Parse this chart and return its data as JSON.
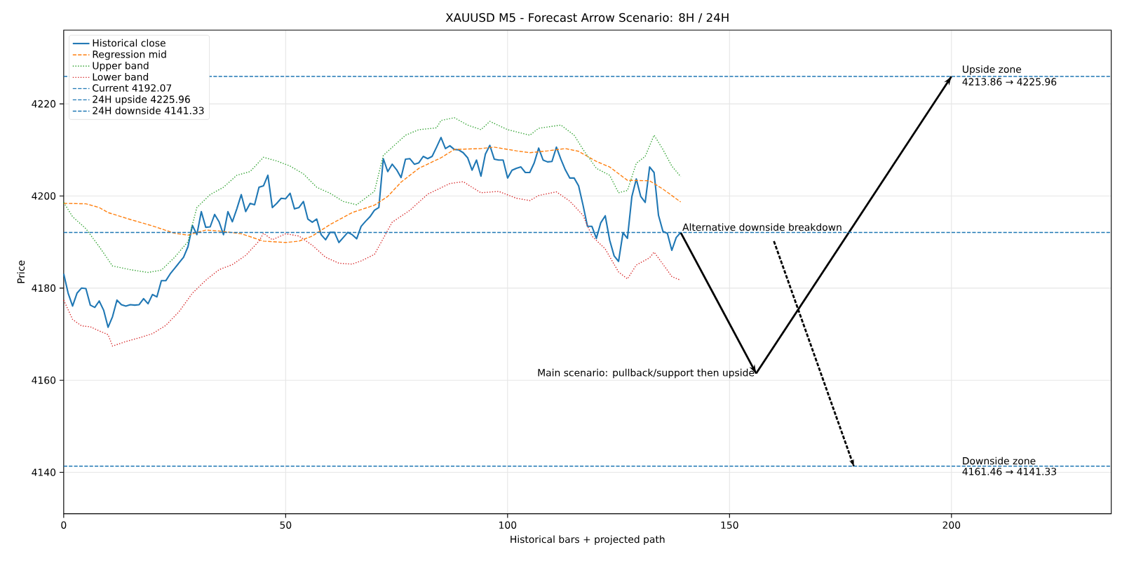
{
  "chart_data": {
    "type": "line",
    "title": "XAUUSD M5 - Forecast Arrow Scenario: 8H / 24H",
    "xlabel": "Historical bars + projected path",
    "ylabel": "Price",
    "xlim": [
      0,
      236
    ],
    "ylim": [
      4131,
      4236
    ],
    "xticks": [
      0,
      50,
      100,
      150,
      200
    ],
    "yticks": [
      4140,
      4160,
      4180,
      4200,
      4220
    ],
    "grid": true,
    "legend": "top left",
    "series": [
      {
        "name": "Historical close",
        "color": "#1f77b4",
        "line_style": "solid",
        "x": [
          0,
          1,
          2,
          3,
          4,
          5,
          6,
          7,
          8,
          9,
          10,
          11,
          12,
          13,
          14,
          15,
          16,
          17,
          18,
          19,
          20,
          21,
          22,
          23,
          24,
          25,
          26,
          27,
          28,
          29,
          30,
          31,
          32,
          33,
          34,
          35,
          36,
          37,
          38,
          39,
          40,
          41,
          42,
          43,
          44,
          45,
          46,
          47,
          48,
          49,
          50,
          51,
          52,
          53,
          54,
          55,
          56,
          57,
          58,
          59,
          60,
          61,
          62,
          63,
          64,
          65,
          66,
          67,
          68,
          69,
          70,
          71,
          72,
          73,
          74,
          75,
          76,
          77,
          78,
          79,
          80,
          81,
          82,
          83,
          84,
          85,
          86,
          87,
          88,
          89,
          90,
          91,
          92,
          93,
          94,
          95,
          96,
          97,
          98,
          99,
          100,
          101,
          102,
          103,
          104,
          105,
          106,
          107,
          108,
          109,
          110,
          111,
          112,
          113,
          114,
          115,
          116,
          117,
          118,
          119,
          120,
          121,
          122,
          123,
          124,
          125,
          126,
          127,
          128,
          129,
          130,
          131,
          132,
          133,
          134,
          135,
          136,
          137,
          138,
          139
        ],
        "values": [
          4183.1,
          4178.9,
          4176.1,
          4178.9,
          4180.0,
          4179.9,
          4176.3,
          4175.8,
          4177.2,
          4175.2,
          4171.5,
          4173.8,
          4177.4,
          4176.4,
          4176.1,
          4176.4,
          4176.3,
          4176.4,
          4177.7,
          4176.6,
          4178.6,
          4178.1,
          4181.6,
          4181.6,
          4183.1,
          4184.3,
          4185.5,
          4186.7,
          4189.0,
          4193.6,
          4191.6,
          4196.6,
          4193.2,
          4193.3,
          4196.0,
          4194.4,
          4191.6,
          4196.6,
          4194.4,
          4197.2,
          4200.3,
          4196.6,
          4198.4,
          4198.1,
          4201.9,
          4202.2,
          4204.5,
          4197.5,
          4198.4,
          4199.5,
          4199.4,
          4200.6,
          4197.2,
          4197.5,
          4198.8,
          4195.0,
          4194.3,
          4195.0,
          4191.6,
          4190.5,
          4192.1,
          4192.1,
          4189.9,
          4191.0,
          4192.1,
          4191.6,
          4190.7,
          4193.4,
          4194.5,
          4195.5,
          4196.9,
          4197.5,
          4208.1,
          4205.3,
          4206.9,
          4205.7,
          4204.0,
          4208.0,
          4208.1,
          4206.9,
          4207.2,
          4208.6,
          4208.1,
          4208.6,
          4210.6,
          4212.7,
          4210.3,
          4210.9,
          4210.1,
          4210.0,
          4209.4,
          4208.3,
          4205.6,
          4207.8,
          4204.3,
          4209.1,
          4211.0,
          4208.0,
          4207.8,
          4207.8,
          4203.9,
          4205.6,
          4206.0,
          4206.3,
          4205.1,
          4205.1,
          4207.2,
          4210.4,
          4207.8,
          4207.4,
          4207.5,
          4210.6,
          4208.0,
          4205.7,
          4203.9,
          4203.9,
          4202.2,
          4198.0,
          4193.4,
          4193.4,
          4190.8,
          4194.2,
          4195.7,
          4190.4,
          4187.0,
          4185.8,
          4192.0,
          4190.8,
          4199.9,
          4203.7,
          4199.9,
          4198.6,
          4206.3,
          4205.1,
          4195.8,
          4192.3,
          4191.9,
          4188.2,
          4191.0,
          4192.07
        ]
      },
      {
        "name": "Regression mid",
        "color": "#ff7f0e",
        "line_style": "dashed",
        "x": [
          0,
          5,
          8,
          10,
          15,
          20,
          25,
          28,
          32,
          35,
          40,
          45,
          50,
          53,
          56,
          60,
          65,
          70,
          73,
          76,
          80,
          85,
          88,
          94,
          97,
          102,
          105,
          109,
          113,
          116,
          120,
          123,
          127,
          132,
          135,
          139
        ],
        "values": [
          4198.4,
          4198.3,
          4197.5,
          4196.4,
          4194.9,
          4193.5,
          4191.9,
          4191.5,
          4192.6,
          4192.4,
          4191.8,
          4190.2,
          4189.9,
          4190.2,
          4191.3,
          4193.8,
          4196.4,
          4198.0,
          4199.9,
          4203.0,
          4206.0,
          4208.3,
          4210.1,
          4210.3,
          4210.6,
          4209.8,
          4209.4,
          4209.8,
          4210.3,
          4209.7,
          4207.5,
          4206.3,
          4203.4,
          4203.3,
          4201.5,
          4198.7
        ]
      },
      {
        "name": "Upper band",
        "color": "#2ca02c",
        "line_style": "dotted",
        "x": [
          0,
          2,
          5,
          8,
          11,
          15,
          19,
          22,
          25,
          28,
          30,
          33,
          36,
          39,
          42,
          45,
          48,
          51,
          54,
          57,
          60,
          63,
          66,
          70,
          72,
          77,
          80,
          84,
          85,
          88,
          91,
          94,
          96,
          100,
          105,
          107,
          112,
          115,
          117,
          120,
          123,
          125,
          127,
          129,
          131,
          133,
          135,
          137,
          139
        ],
        "values": [
          4198.6,
          4195.5,
          4192.9,
          4189.0,
          4184.8,
          4184.0,
          4183.4,
          4183.9,
          4186.7,
          4190.1,
          4197.5,
          4200.3,
          4201.9,
          4204.5,
          4205.3,
          4208.4,
          4207.6,
          4206.5,
          4204.8,
          4201.9,
          4200.6,
          4198.8,
          4198.1,
          4201.0,
          4208.8,
          4213.2,
          4214.4,
          4214.8,
          4216.4,
          4217.0,
          4215.4,
          4214.4,
          4216.2,
          4214.4,
          4213.2,
          4214.7,
          4215.4,
          4213.2,
          4210.1,
          4206.0,
          4204.5,
          4200.7,
          4201.2,
          4207.1,
          4208.6,
          4213.2,
          4210.1,
          4206.5,
          4204.2
        ]
      },
      {
        "name": "Lower band",
        "color": "#d62728",
        "line_style": "dotted",
        "x": [
          0,
          2,
          4,
          6,
          8,
          10,
          11,
          14,
          17,
          20,
          23,
          26,
          29,
          32,
          35,
          38,
          41,
          44,
          45,
          47,
          50,
          53,
          56,
          59,
          62,
          65,
          67,
          70,
          74,
          78,
          82,
          87,
          90,
          94,
          98,
          102,
          105,
          107,
          111,
          114,
          117,
          119,
          122,
          125,
          127,
          129,
          132,
          133,
          135,
          137,
          139
        ],
        "values": [
          4177.4,
          4173.2,
          4171.8,
          4171.6,
          4170.7,
          4169.9,
          4167.4,
          4168.4,
          4169.2,
          4170.1,
          4171.9,
          4174.9,
          4178.9,
          4181.7,
          4184.0,
          4185.1,
          4187.1,
          4190.2,
          4191.9,
          4190.5,
          4191.8,
          4191.3,
          4189.3,
          4186.7,
          4185.4,
          4185.2,
          4185.9,
          4187.3,
          4194.3,
          4196.9,
          4200.4,
          4202.7,
          4203.1,
          4200.7,
          4201.0,
          4199.5,
          4199.0,
          4200.1,
          4200.9,
          4198.9,
          4195.8,
          4191.3,
          4188.5,
          4183.5,
          4182.0,
          4185.0,
          4186.6,
          4187.8,
          4185.2,
          4182.5,
          4181.7
        ]
      },
      {
        "color": "#000000",
        "line_style": "solid",
        "x": [
          139,
          156
        ],
        "values": [
          4192.07,
          4161.46
        ]
      },
      {
        "color": "#000000",
        "line_style": "solid",
        "x": [
          156,
          200
        ],
        "values": [
          4161.46,
          4225.96
        ]
      },
      {
        "color": "#000000",
        "line_style": "dashed",
        "x": [
          160,
          178
        ],
        "values": [
          4190.2,
          4141.33
        ]
      }
    ],
    "ref_lines": [
      {
        "axis": "y",
        "value": 4192.07,
        "label": "Current 4192.07",
        "color": "#1f77b4",
        "line_style": "dashed"
      },
      {
        "axis": "y",
        "value": 4225.96,
        "label": "24H upside 4225.96",
        "color": "#1f77b4",
        "line_style": "dashed"
      },
      {
        "axis": "y",
        "value": 4141.33,
        "label": "24H downside 4141.33",
        "color": "#1f77b4",
        "line_style": "dashed"
      }
    ],
    "annotations": [
      {
        "text": "Main scenario: pullback/support then upside",
        "x": 156,
        "y": 4161.46
      },
      {
        "text": "Alternative downside breakdown",
        "x": 139,
        "y": 4192.07
      },
      {
        "text": "Upside zone",
        "x": 202,
        "y": 4225.96
      },
      {
        "text": "4213.86 → 4225.96",
        "x": 202,
        "y": 4225.96
      },
      {
        "text": "Downside zone",
        "x": 202,
        "y": 4141.33
      },
      {
        "text": "4161.46 → 4141.33",
        "x": 202,
        "y": 4141.33
      }
    ]
  }
}
